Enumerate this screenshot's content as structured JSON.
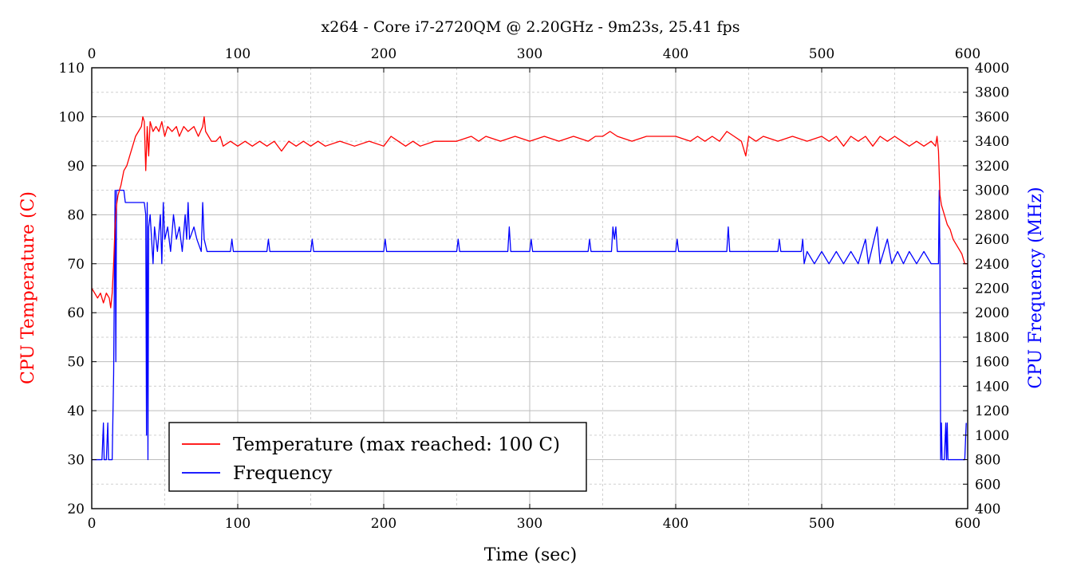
{
  "chart_data": {
    "type": "line",
    "title": "x264 - Core i7-2720QM @ 2.20GHz - 9m23s, 25.41 fps",
    "xlabel": "Time (sec)",
    "ylabel_left": "CPU Temperature (C)",
    "ylabel_right": "CPU Frequency (MHz)",
    "xlim": [
      0,
      600
    ],
    "ylim_left": [
      20,
      110
    ],
    "ylim_right": [
      400,
      4000
    ],
    "x_ticks": [
      "0",
      "100",
      "200",
      "300",
      "400",
      "500",
      "600"
    ],
    "y_ticks_left": [
      "20",
      "30",
      "40",
      "50",
      "60",
      "70",
      "80",
      "90",
      "100",
      "110"
    ],
    "y_ticks_right": [
      "400",
      "600",
      "800",
      "1000",
      "1200",
      "1400",
      "1600",
      "1800",
      "2000",
      "2200",
      "2400",
      "2600",
      "2800",
      "3000",
      "3200",
      "3400",
      "3600",
      "3800",
      "4000"
    ],
    "grid": true,
    "legend_position": "bottom-left",
    "series": [
      {
        "name": "Temperature (max reached: 100 C)",
        "color": "#ff0000",
        "axis": "left",
        "points": [
          [
            0,
            65
          ],
          [
            2,
            64
          ],
          [
            4,
            63
          ],
          [
            6,
            64
          ],
          [
            8,
            62
          ],
          [
            10,
            64
          ],
          [
            12,
            63
          ],
          [
            13,
            61
          ],
          [
            14,
            64
          ],
          [
            15,
            70
          ],
          [
            16,
            78
          ],
          [
            17,
            82
          ],
          [
            18,
            84
          ],
          [
            20,
            86
          ],
          [
            22,
            89
          ],
          [
            24,
            90
          ],
          [
            26,
            92
          ],
          [
            28,
            94
          ],
          [
            30,
            96
          ],
          [
            32,
            97
          ],
          [
            34,
            98
          ],
          [
            35,
            100
          ],
          [
            36,
            99
          ],
          [
            37,
            89
          ],
          [
            38,
            98
          ],
          [
            39,
            92
          ],
          [
            40,
            99
          ],
          [
            42,
            97
          ],
          [
            44,
            98
          ],
          [
            46,
            97
          ],
          [
            48,
            99
          ],
          [
            50,
            96
          ],
          [
            52,
            98
          ],
          [
            55,
            97
          ],
          [
            58,
            98
          ],
          [
            60,
            96
          ],
          [
            63,
            98
          ],
          [
            66,
            97
          ],
          [
            70,
            98
          ],
          [
            73,
            96
          ],
          [
            76,
            98
          ],
          [
            77,
            100
          ],
          [
            78,
            97
          ],
          [
            80,
            96
          ],
          [
            82,
            95
          ],
          [
            85,
            95
          ],
          [
            88,
            96
          ],
          [
            90,
            94
          ],
          [
            95,
            95
          ],
          [
            100,
            94
          ],
          [
            105,
            95
          ],
          [
            110,
            94
          ],
          [
            115,
            95
          ],
          [
            120,
            94
          ],
          [
            125,
            95
          ],
          [
            130,
            93
          ],
          [
            135,
            95
          ],
          [
            140,
            94
          ],
          [
            145,
            95
          ],
          [
            150,
            94
          ],
          [
            155,
            95
          ],
          [
            160,
            94
          ],
          [
            170,
            95
          ],
          [
            180,
            94
          ],
          [
            190,
            95
          ],
          [
            200,
            94
          ],
          [
            205,
            96
          ],
          [
            210,
            95
          ],
          [
            215,
            94
          ],
          [
            220,
            95
          ],
          [
            225,
            94
          ],
          [
            235,
            95
          ],
          [
            250,
            95
          ],
          [
            260,
            96
          ],
          [
            265,
            95
          ],
          [
            270,
            96
          ],
          [
            280,
            95
          ],
          [
            290,
            96
          ],
          [
            300,
            95
          ],
          [
            310,
            96
          ],
          [
            320,
            95
          ],
          [
            330,
            96
          ],
          [
            340,
            95
          ],
          [
            345,
            96
          ],
          [
            350,
            96
          ],
          [
            355,
            97
          ],
          [
            360,
            96
          ],
          [
            370,
            95
          ],
          [
            380,
            96
          ],
          [
            390,
            96
          ],
          [
            400,
            96
          ],
          [
            410,
            95
          ],
          [
            415,
            96
          ],
          [
            420,
            95
          ],
          [
            425,
            96
          ],
          [
            430,
            95
          ],
          [
            435,
            97
          ],
          [
            440,
            96
          ],
          [
            445,
            95
          ],
          [
            448,
            92
          ],
          [
            450,
            96
          ],
          [
            455,
            95
          ],
          [
            460,
            96
          ],
          [
            470,
            95
          ],
          [
            480,
            96
          ],
          [
            490,
            95
          ],
          [
            500,
            96
          ],
          [
            505,
            95
          ],
          [
            510,
            96
          ],
          [
            515,
            94
          ],
          [
            520,
            96
          ],
          [
            525,
            95
          ],
          [
            530,
            96
          ],
          [
            535,
            94
          ],
          [
            540,
            96
          ],
          [
            545,
            95
          ],
          [
            550,
            96
          ],
          [
            555,
            95
          ],
          [
            560,
            94
          ],
          [
            565,
            95
          ],
          [
            570,
            94
          ],
          [
            575,
            95
          ],
          [
            578,
            94
          ],
          [
            579,
            96
          ],
          [
            580,
            93
          ],
          [
            581,
            84
          ],
          [
            582,
            82
          ],
          [
            584,
            80
          ],
          [
            586,
            78
          ],
          [
            588,
            77
          ],
          [
            590,
            75
          ],
          [
            592,
            74
          ],
          [
            594,
            73
          ],
          [
            596,
            72
          ],
          [
            598,
            70
          ],
          [
            600,
            70
          ]
        ]
      },
      {
        "name": "Frequency",
        "color": "#0000ff",
        "axis": "right",
        "points": [
          [
            0,
            800
          ],
          [
            7,
            800
          ],
          [
            8,
            1100
          ],
          [
            8.5,
            800
          ],
          [
            10,
            800
          ],
          [
            11,
            1100
          ],
          [
            11.5,
            800
          ],
          [
            14,
            800
          ],
          [
            15,
            1500
          ],
          [
            16,
            3000
          ],
          [
            16.5,
            1600
          ],
          [
            17,
            3000
          ],
          [
            22,
            3000
          ],
          [
            23,
            2900
          ],
          [
            36,
            2900
          ],
          [
            37,
            2800
          ],
          [
            37.5,
            1000
          ],
          [
            38,
            2900
          ],
          [
            38.5,
            800
          ],
          [
            39,
            2700
          ],
          [
            40,
            2800
          ],
          [
            41,
            2600
          ],
          [
            42,
            2400
          ],
          [
            43,
            2700
          ],
          [
            45,
            2500
          ],
          [
            47,
            2800
          ],
          [
            48,
            2400
          ],
          [
            49,
            2900
          ],
          [
            50,
            2600
          ],
          [
            52,
            2700
          ],
          [
            54,
            2500
          ],
          [
            56,
            2800
          ],
          [
            58,
            2600
          ],
          [
            60,
            2700
          ],
          [
            62,
            2500
          ],
          [
            64,
            2800
          ],
          [
            65,
            2600
          ],
          [
            66,
            2900
          ],
          [
            67,
            2600
          ],
          [
            70,
            2700
          ],
          [
            72,
            2600
          ],
          [
            75,
            2500
          ],
          [
            76,
            2900
          ],
          [
            77,
            2600
          ],
          [
            79,
            2500
          ],
          [
            80,
            2500
          ],
          [
            95,
            2500
          ],
          [
            96,
            2600
          ],
          [
            97,
            2500
          ],
          [
            120,
            2500
          ],
          [
            121,
            2600
          ],
          [
            122,
            2500
          ],
          [
            150,
            2500
          ],
          [
            151,
            2600
          ],
          [
            152,
            2500
          ],
          [
            200,
            2500
          ],
          [
            201,
            2600
          ],
          [
            202,
            2500
          ],
          [
            250,
            2500
          ],
          [
            251,
            2600
          ],
          [
            252,
            2500
          ],
          [
            285,
            2500
          ],
          [
            286,
            2700
          ],
          [
            287,
            2500
          ],
          [
            300,
            2500
          ],
          [
            301,
            2600
          ],
          [
            302,
            2500
          ],
          [
            340,
            2500
          ],
          [
            341,
            2600
          ],
          [
            342,
            2500
          ],
          [
            356,
            2500
          ],
          [
            357,
            2700
          ],
          [
            358,
            2600
          ],
          [
            359,
            2700
          ],
          [
            360,
            2500
          ],
          [
            400,
            2500
          ],
          [
            401,
            2600
          ],
          [
            402,
            2500
          ],
          [
            435,
            2500
          ],
          [
            436,
            2700
          ],
          [
            437,
            2500
          ],
          [
            470,
            2500
          ],
          [
            471,
            2600
          ],
          [
            472,
            2500
          ],
          [
            486,
            2500
          ],
          [
            487,
            2600
          ],
          [
            488,
            2400
          ],
          [
            490,
            2500
          ],
          [
            495,
            2400
          ],
          [
            500,
            2500
          ],
          [
            505,
            2400
          ],
          [
            510,
            2500
          ],
          [
            515,
            2400
          ],
          [
            520,
            2500
          ],
          [
            525,
            2400
          ],
          [
            530,
            2600
          ],
          [
            532,
            2400
          ],
          [
            538,
            2700
          ],
          [
            540,
            2400
          ],
          [
            545,
            2600
          ],
          [
            548,
            2400
          ],
          [
            552,
            2500
          ],
          [
            556,
            2400
          ],
          [
            560,
            2500
          ],
          [
            565,
            2400
          ],
          [
            570,
            2500
          ],
          [
            575,
            2400
          ],
          [
            580,
            2400
          ],
          [
            580.5,
            3000
          ],
          [
            581,
            2400
          ],
          [
            581.5,
            800
          ],
          [
            582,
            1100
          ],
          [
            582.5,
            800
          ],
          [
            584,
            800
          ],
          [
            585,
            1100
          ],
          [
            585.5,
            800
          ],
          [
            586,
            1100
          ],
          [
            586.5,
            800
          ],
          [
            598,
            800
          ],
          [
            599,
            1100
          ]
        ]
      }
    ]
  }
}
